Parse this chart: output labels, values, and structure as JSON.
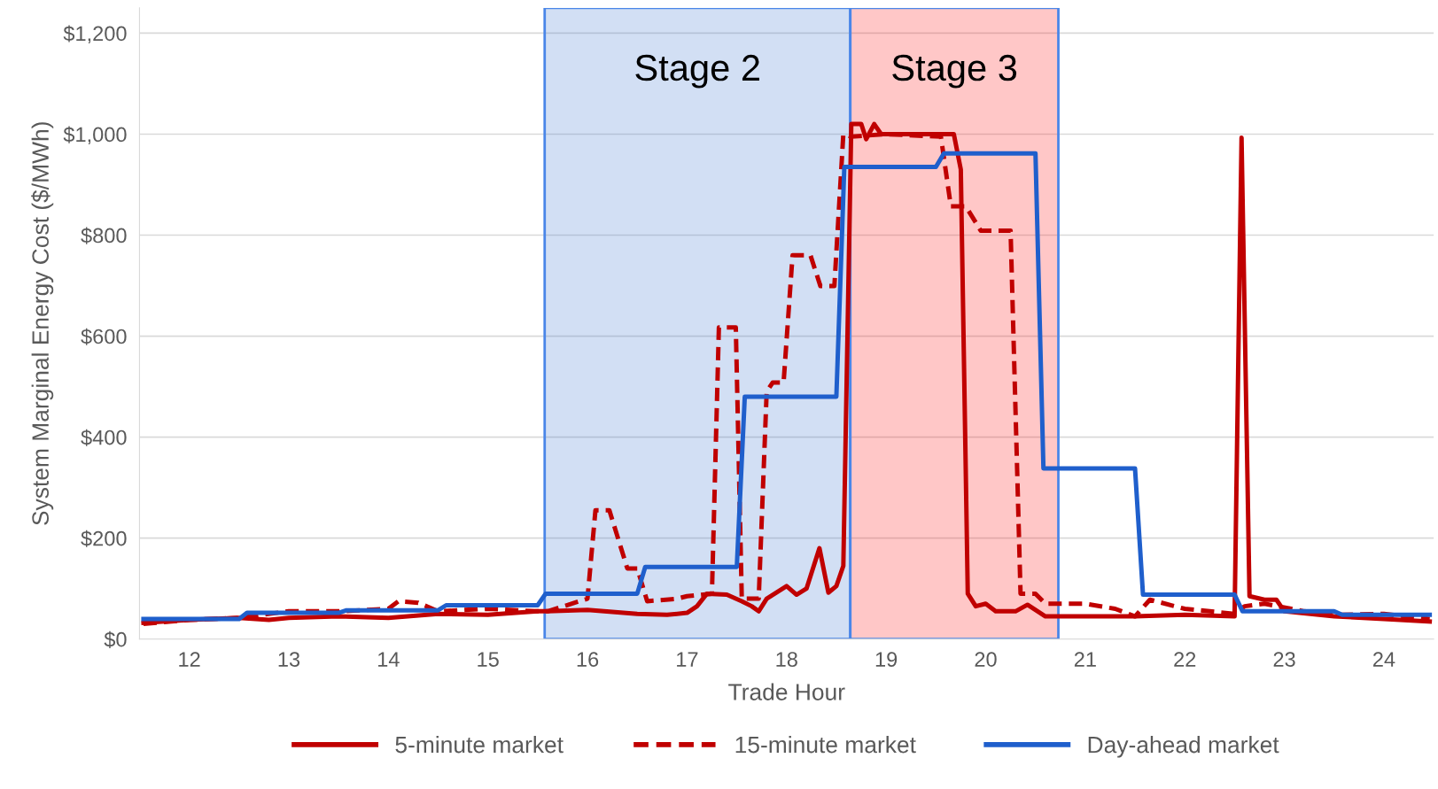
{
  "chart_data": {
    "type": "line",
    "xlabel": "Trade Hour",
    "ylabel": "System Marginal Energy Cost ($/MWh)",
    "xlim": [
      11.5,
      24.5
    ],
    "xticks": [
      12,
      13,
      14,
      15,
      16,
      17,
      18,
      19,
      20,
      21,
      22,
      23,
      24
    ],
    "ylim": [
      0,
      1250
    ],
    "yticks": [
      {
        "value": 0,
        "label": "$0"
      },
      {
        "value": 200,
        "label": "$200"
      },
      {
        "value": 400,
        "label": "$400"
      },
      {
        "value": 600,
        "label": "$600"
      },
      {
        "value": 800,
        "label": "$800"
      },
      {
        "value": 1000,
        "label": "$1,000"
      },
      {
        "value": 1200,
        "label": "$1,200"
      }
    ],
    "grid": "y",
    "legend": "bottom",
    "marker": "none",
    "bands": [
      {
        "axis": "x",
        "from": 15.57,
        "to": 18.64,
        "label": "Stage 2",
        "color": "#4a7fd4"
      },
      {
        "axis": "x",
        "from": 18.64,
        "to": 20.73,
        "label": "Stage 3",
        "color": "#ff2020"
      }
    ],
    "series": [
      {
        "name": "5-minute market",
        "color": "#c00000",
        "line_style": "solid",
        "x": [
          11.54,
          12.0,
          12.5,
          12.8,
          13.0,
          13.5,
          14.0,
          14.5,
          15.0,
          15.5,
          15.6,
          16.0,
          16.5,
          16.8,
          17.0,
          17.1,
          17.2,
          17.4,
          17.55,
          17.65,
          17.72,
          17.8,
          18.0,
          18.1,
          18.2,
          18.33,
          18.42,
          18.5,
          18.57,
          18.65,
          18.75,
          18.8,
          18.88,
          18.95,
          19.0,
          19.68,
          19.75,
          19.82,
          19.9,
          20.0,
          20.1,
          20.3,
          20.42,
          20.6,
          21.0,
          21.5,
          22.0,
          22.5,
          22.57,
          22.65,
          22.8,
          22.92,
          23.0,
          23.5,
          24.0,
          24.46
        ],
        "values": [
          32,
          38,
          42,
          38,
          42,
          45,
          42,
          50,
          48,
          55,
          55,
          58,
          50,
          48,
          52,
          65,
          90,
          88,
          75,
          65,
          55,
          80,
          105,
          88,
          100,
          180,
          92,
          105,
          145,
          1020,
          1020,
          990,
          1020,
          1000,
          1000,
          1000,
          930,
          90,
          65,
          70,
          55,
          55,
          68,
          45,
          45,
          45,
          48,
          45,
          993,
          85,
          78,
          78,
          55,
          45,
          40,
          35
        ]
      },
      {
        "name": "15-minute market",
        "color": "#c00000",
        "line_style": "dashed",
        "x": [
          11.54,
          12.0,
          12.5,
          13.0,
          13.5,
          14.0,
          14.1,
          14.3,
          14.5,
          15.0,
          15.5,
          15.6,
          16.0,
          16.08,
          16.22,
          16.4,
          16.5,
          16.6,
          16.9,
          17.0,
          17.25,
          17.32,
          17.49,
          17.55,
          17.72,
          17.8,
          17.86,
          17.97,
          18.06,
          18.24,
          18.34,
          18.48,
          18.57,
          18.65,
          19.0,
          19.55,
          19.65,
          19.8,
          19.95,
          20.25,
          20.35,
          20.5,
          20.6,
          21.0,
          21.3,
          21.5,
          21.65,
          22.0,
          22.5,
          22.6,
          22.8,
          23.2,
          23.5,
          24.0,
          24.46
        ],
        "values": [
          30,
          38,
          42,
          55,
          55,
          60,
          75,
          72,
          55,
          60,
          55,
          55,
          80,
          255,
          255,
          140,
          140,
          75,
          80,
          85,
          90,
          617,
          617,
          80,
          80,
          490,
          508,
          508,
          760,
          760,
          699,
          699,
          1000,
          995,
          1000,
          995,
          857,
          857,
          809,
          809,
          90,
          90,
          70,
          70,
          60,
          45,
          78,
          60,
          50,
          65,
          70,
          55,
          48,
          50,
          40
        ]
      },
      {
        "name": "Day-ahead market",
        "color": "#1f5fcc",
        "line_style": "solid",
        "x": [
          11.54,
          12.5,
          12.58,
          13.5,
          13.58,
          14.5,
          14.58,
          15.5,
          15.58,
          16.5,
          16.58,
          17.5,
          17.58,
          18.5,
          18.58,
          19.5,
          19.58,
          20.5,
          20.58,
          21.5,
          21.58,
          22.5,
          22.58,
          23.5,
          23.58,
          24.46
        ],
        "values": [
          40,
          40,
          52,
          52,
          57,
          57,
          67,
          67,
          90,
          90,
          143,
          143,
          480,
          480,
          935,
          935,
          962,
          962,
          338,
          338,
          88,
          88,
          55,
          55,
          48,
          48
        ]
      }
    ]
  }
}
